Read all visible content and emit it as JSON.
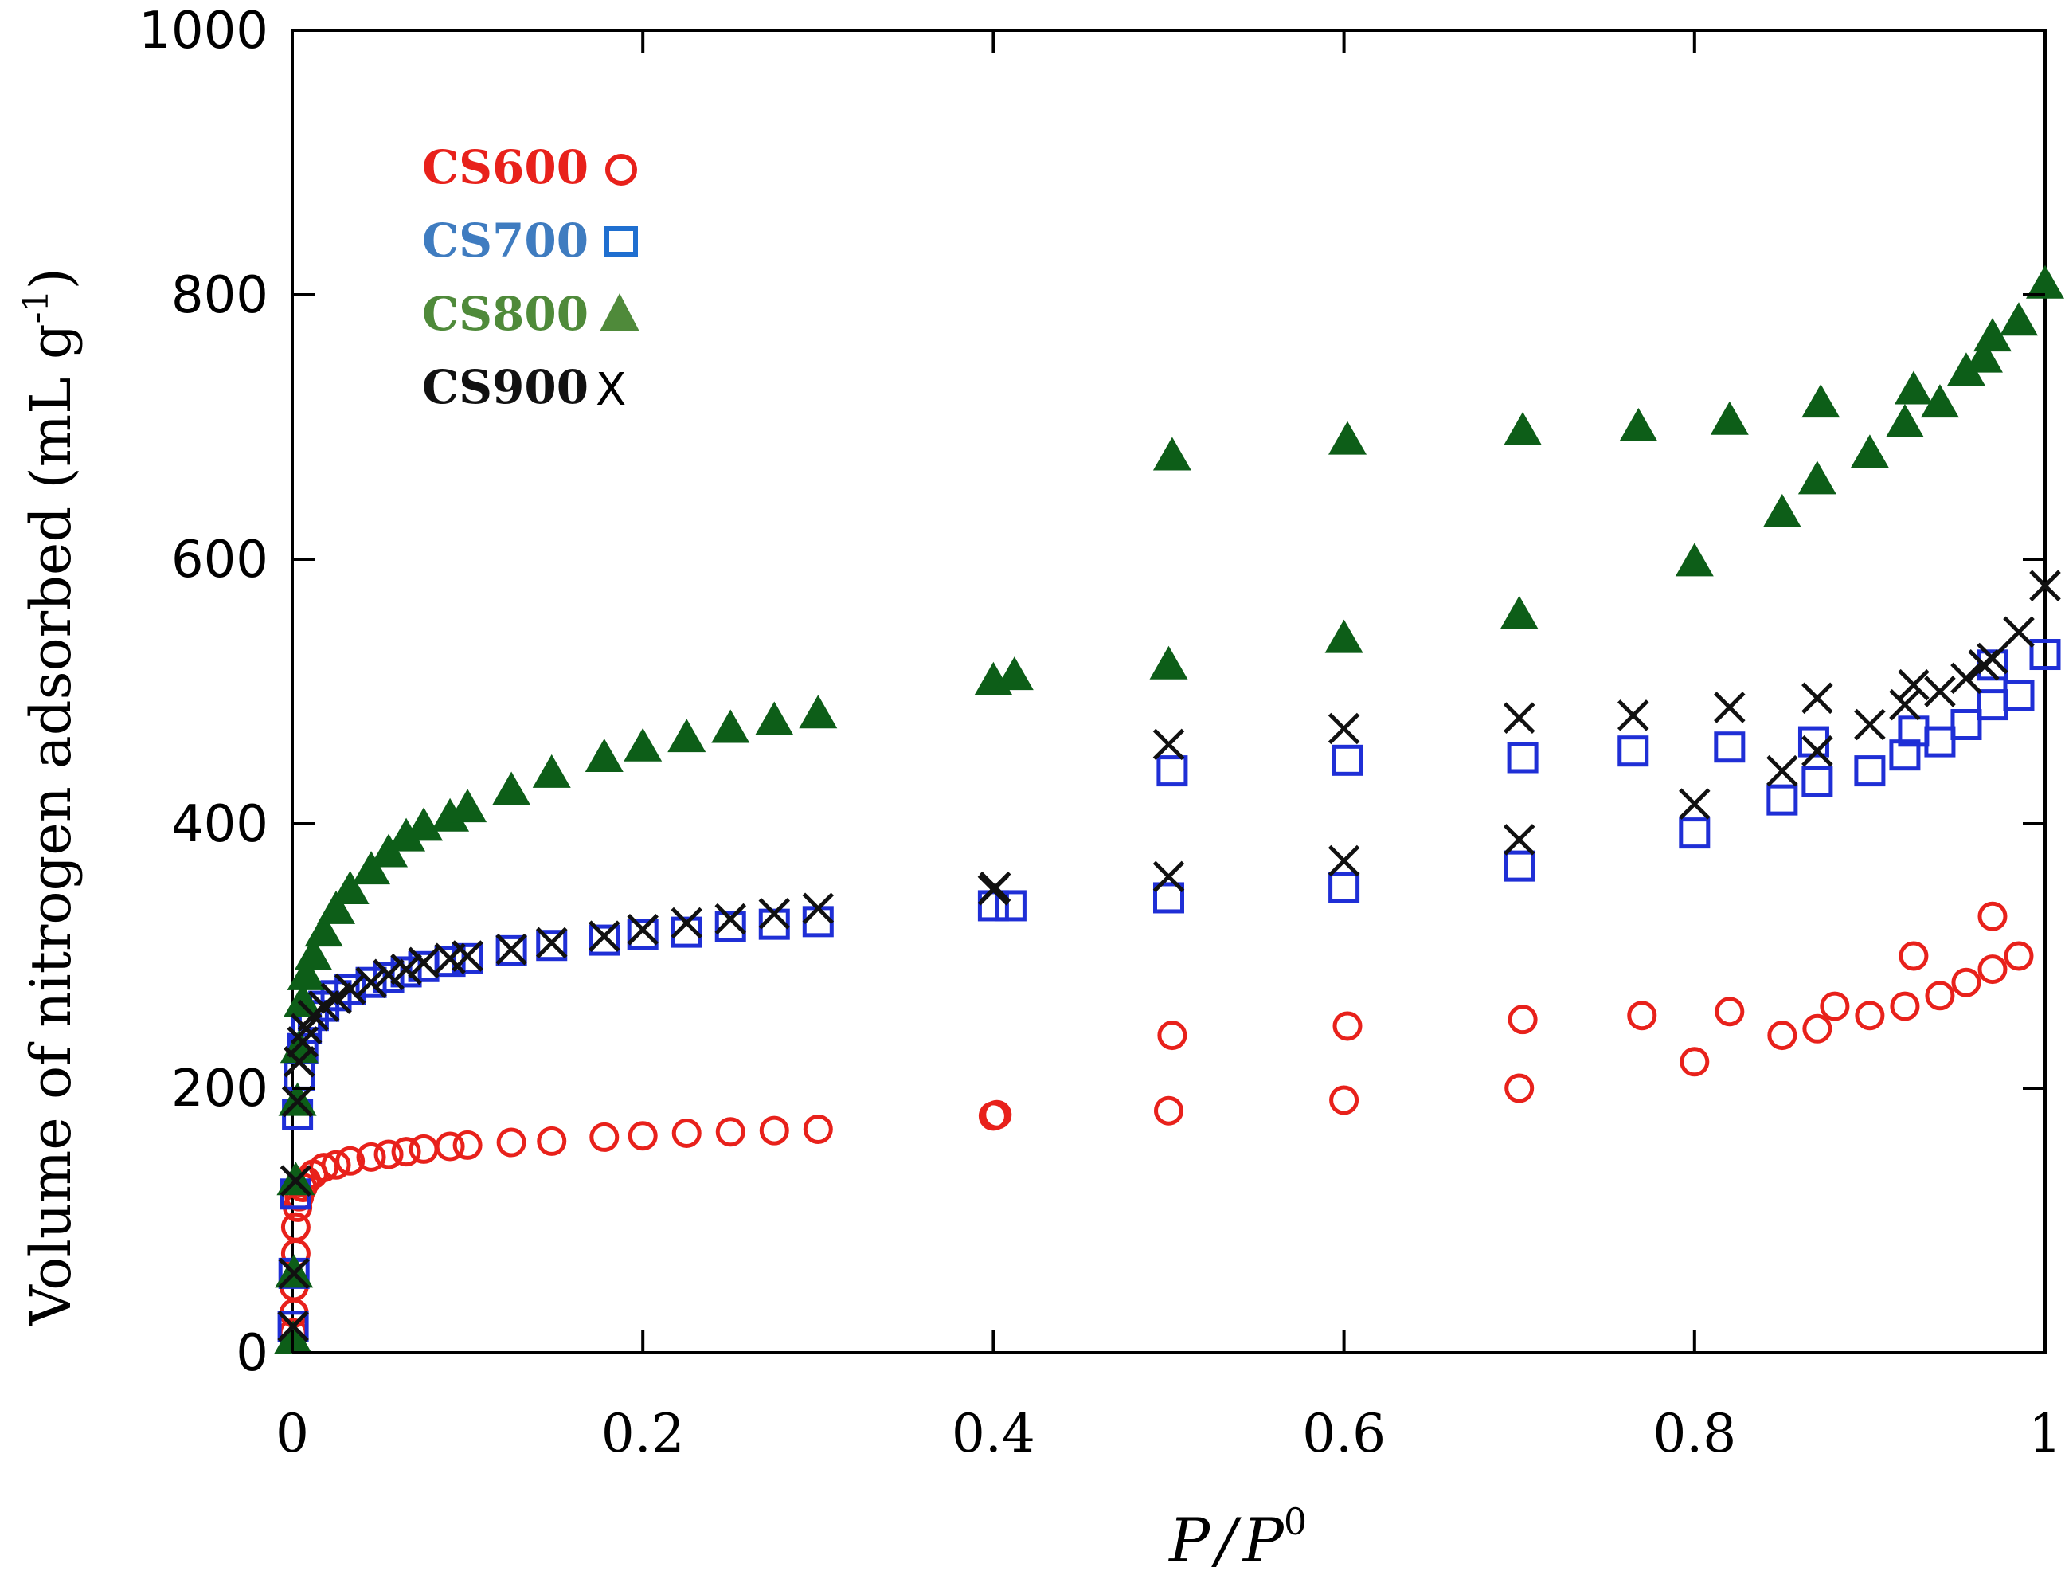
{
  "chart_data": {
    "type": "scatter",
    "title": "",
    "xlabel_main": "P",
    "xlabel_sep": "/",
    "xlabel_sub": "P",
    "xlabel_sup": "0",
    "ylabel_main": "Volume of nitrogen adsorbed (mL g",
    "ylabel_sup": "-1",
    "ylabel_end": ")",
    "xlim": [
      0,
      1
    ],
    "ylim": [
      0,
      1000
    ],
    "x_ticks": [
      {
        "value": 0,
        "label": "0"
      },
      {
        "value": 0.2,
        "label": "0.2"
      },
      {
        "value": 0.4,
        "label": "0.4"
      },
      {
        "value": 0.6,
        "label": "0.6"
      },
      {
        "value": 0.8,
        "label": "0.8"
      },
      {
        "value": 1,
        "label": "1"
      }
    ],
    "y_ticks": [
      {
        "value": 0,
        "label": "0"
      },
      {
        "value": 200,
        "label": "200"
      },
      {
        "value": 400,
        "label": "400"
      },
      {
        "value": 600,
        "label": "600"
      },
      {
        "value": 800,
        "label": "800"
      },
      {
        "value": 1000,
        "label": "1000"
      }
    ],
    "grid": false,
    "legend_position": "top-left",
    "series": [
      {
        "name": "CS600",
        "symbol_label": "",
        "marker": "circle",
        "color": "#e8211b",
        "legend_color": "#e8211b",
        "x": [
          0.0005,
          0.001,
          0.001,
          0.002,
          0.002,
          0.003,
          0.004,
          0.006,
          0.008,
          0.012,
          0.018,
          0.025,
          0.033,
          0.045,
          0.055,
          0.065,
          0.075,
          0.09,
          0.1,
          0.125,
          0.148,
          0.178,
          0.2,
          0.225,
          0.25,
          0.275,
          0.3,
          0.4,
          0.402,
          0.5,
          0.6,
          0.7,
          0.8,
          0.85,
          0.87,
          0.9,
          0.92,
          0.94,
          0.955,
          0.97,
          0.985,
          0.502,
          0.602,
          0.702,
          0.77,
          0.82,
          0.88,
          0.925,
          0.97
        ],
        "y": [
          15,
          30,
          50,
          75,
          95,
          110,
          118,
          125,
          130,
          135,
          140,
          142,
          145,
          148,
          150,
          152,
          154,
          156,
          157,
          159,
          160,
          163,
          164,
          166,
          167,
          168,
          169,
          179,
          180,
          183,
          191,
          200,
          220,
          240,
          245,
          255,
          262,
          270,
          280,
          290,
          300,
          240,
          247,
          252,
          255,
          258,
          262,
          300,
          330
        ]
      },
      {
        "name": "CS700",
        "symbol_label": "",
        "marker": "square",
        "color": "#1f2fd6",
        "legend_color": "#3f7cc0",
        "x": [
          0.0005,
          0.001,
          0.002,
          0.003,
          0.004,
          0.006,
          0.008,
          0.012,
          0.018,
          0.025,
          0.033,
          0.045,
          0.055,
          0.065,
          0.075,
          0.09,
          0.1,
          0.125,
          0.148,
          0.178,
          0.2,
          0.225,
          0.25,
          0.275,
          0.3,
          0.4,
          0.41,
          0.5,
          0.6,
          0.7,
          0.8,
          0.85,
          0.87,
          0.9,
          0.92,
          0.94,
          0.955,
          0.97,
          0.985,
          1.0,
          0.502,
          0.602,
          0.702,
          0.765,
          0.82,
          0.868,
          0.925,
          0.97
        ],
        "y": [
          20,
          60,
          120,
          180,
          210,
          230,
          245,
          255,
          262,
          270,
          275,
          280,
          284,
          288,
          292,
          296,
          298,
          304,
          308,
          312,
          316,
          318,
          322,
          324,
          326,
          338,
          338,
          344,
          352,
          368,
          393,
          418,
          432,
          440,
          452,
          462,
          475,
          490,
          497,
          528,
          440,
          448,
          450,
          455,
          458,
          462,
          470,
          520
        ]
      },
      {
        "name": "CS800",
        "symbol_label": "",
        "marker": "triangle",
        "color": "#0d5e18",
        "legend_color": "#4f8a3a",
        "x": [
          0.0005,
          0.001,
          0.002,
          0.003,
          0.004,
          0.006,
          0.008,
          0.012,
          0.018,
          0.025,
          0.033,
          0.045,
          0.055,
          0.065,
          0.075,
          0.09,
          0.1,
          0.125,
          0.148,
          0.178,
          0.2,
          0.225,
          0.25,
          0.275,
          0.3,
          0.4,
          0.412,
          0.5,
          0.6,
          0.7,
          0.8,
          0.85,
          0.87,
          0.9,
          0.92,
          0.94,
          0.955,
          0.97,
          0.985,
          1.0,
          0.502,
          0.602,
          0.702,
          0.768,
          0.82,
          0.872,
          0.925,
          0.965
        ],
        "y": [
          10,
          60,
          130,
          190,
          230,
          265,
          285,
          300,
          318,
          335,
          350,
          365,
          378,
          390,
          398,
          405,
          412,
          425,
          438,
          450,
          458,
          465,
          472,
          478,
          483,
          508,
          512,
          520,
          540,
          558,
          598,
          635,
          660,
          680,
          703,
          718,
          742,
          768,
          780,
          808,
          678,
          690,
          697,
          700,
          705,
          718,
          728,
          752
        ]
      },
      {
        "name": "CS900",
        "symbol_label": "X",
        "marker": "cross",
        "color": "#111111",
        "legend_color": "#111111",
        "x": [
          0.0005,
          0.001,
          0.002,
          0.003,
          0.004,
          0.006,
          0.008,
          0.012,
          0.018,
          0.025,
          0.033,
          0.045,
          0.055,
          0.065,
          0.075,
          0.09,
          0.1,
          0.125,
          0.148,
          0.178,
          0.2,
          0.225,
          0.25,
          0.275,
          0.3,
          0.4,
          0.401,
          0.5,
          0.6,
          0.7,
          0.8,
          0.85,
          0.87,
          0.9,
          0.92,
          0.94,
          0.955,
          0.97,
          0.985,
          1.0,
          0.5,
          0.6,
          0.7,
          0.765,
          0.82,
          0.87,
          0.925,
          0.965
        ],
        "y": [
          20,
          60,
          130,
          190,
          220,
          235,
          245,
          255,
          262,
          268,
          275,
          280,
          286,
          290,
          295,
          298,
          300,
          305,
          310,
          315,
          320,
          325,
          328,
          332,
          336,
          350,
          352,
          360,
          372,
          388,
          415,
          440,
          455,
          475,
          490,
          500,
          510,
          525,
          545,
          580,
          460,
          472,
          480,
          482,
          488,
          495,
          505,
          520
        ]
      }
    ]
  }
}
